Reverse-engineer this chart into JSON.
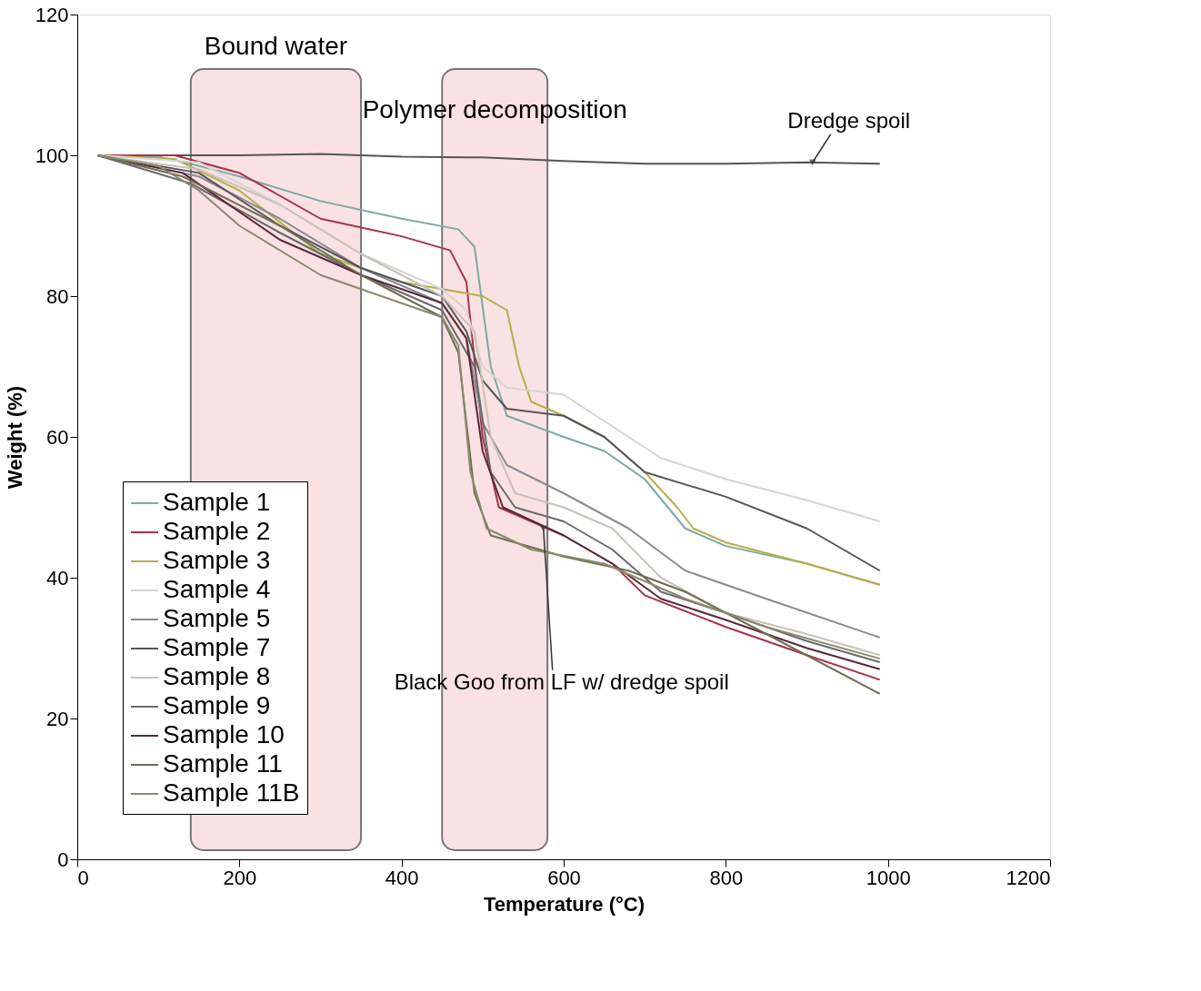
{
  "chart_data": {
    "type": "line",
    "xlabel": "Temperature (°C)",
    "ylabel": "Weight (%)",
    "xlim": [
      0,
      1200
    ],
    "xticks": [
      0,
      200,
      400,
      600,
      800,
      1000,
      1200
    ],
    "ylim": [
      0,
      120
    ],
    "yticks": [
      0,
      20,
      40,
      60,
      80,
      100,
      120
    ],
    "grid": false,
    "legend": "bottom left",
    "line_style": "solid",
    "marker": "none",
    "series": [
      {
        "name": "Sample 1",
        "color": "#7fa8a6",
        "x": [
          25,
          100,
          150,
          200,
          300,
          400,
          470,
          490,
          510,
          530,
          600,
          650,
          700,
          750,
          800,
          900,
          990
        ],
        "values": [
          100,
          99.8,
          98.5,
          97,
          93.5,
          91,
          89.5,
          87,
          70,
          63,
          60,
          58,
          54,
          47,
          44.5,
          42,
          39
        ]
      },
      {
        "name": "Sample 2",
        "color": "#a8324a",
        "x": [
          25,
          120,
          200,
          300,
          400,
          460,
          480,
          500,
          520,
          560,
          600,
          660,
          700,
          800,
          900,
          990
        ],
        "values": [
          100,
          100,
          97.5,
          91,
          88.5,
          86.5,
          82,
          60,
          50,
          48,
          46,
          42,
          37.5,
          33,
          29,
          25.5
        ]
      },
      {
        "name": "Sample 3",
        "color": "#b5b04a",
        "x": [
          25,
          120,
          200,
          300,
          400,
          500,
          530,
          545,
          560,
          600,
          650,
          700,
          740,
          760,
          800,
          900,
          990
        ],
        "values": [
          100,
          99.5,
          95,
          86,
          82,
          80,
          78,
          70,
          65,
          63,
          60,
          55,
          50,
          47,
          45,
          42,
          39
        ]
      },
      {
        "name": "Sample 4",
        "color": "#d8d4d4",
        "x": [
          25,
          150,
          250,
          350,
          450,
          480,
          500,
          530,
          600,
          680,
          720,
          800,
          900,
          990
        ],
        "values": [
          100,
          99,
          93,
          86,
          81,
          78,
          70,
          67,
          66,
          60,
          57,
          54,
          51,
          48
        ]
      },
      {
        "name": "Sample 5",
        "color": "#8a8a95",
        "x": [
          25,
          150,
          250,
          350,
          450,
          480,
          500,
          530,
          600,
          680,
          750,
          850,
          990
        ],
        "values": [
          100,
          97,
          91,
          84,
          79,
          74,
          62,
          56,
          52,
          47,
          41,
          37,
          31.5
        ]
      },
      {
        "name": "Sample 7",
        "color": "#55555c",
        "x": [
          25,
          150,
          250,
          350,
          450,
          480,
          500,
          530,
          600,
          650,
          700,
          800,
          900,
          990
        ],
        "values": [
          100,
          97.5,
          90,
          84,
          80,
          75,
          68,
          64,
          63,
          60,
          55,
          51.5,
          47,
          41
        ]
      },
      {
        "name": "Sample 8",
        "color": "#c9c2b8",
        "x": [
          25,
          150,
          250,
          350,
          450,
          490,
          510,
          540,
          600,
          660,
          720,
          800,
          900,
          990
        ],
        "values": [
          100,
          98,
          93,
          86,
          80,
          75,
          60,
          52,
          50,
          47,
          40,
          35,
          32,
          29
        ]
      },
      {
        "name": "Sample 9",
        "color": "#6a6a70",
        "x": [
          25,
          140,
          250,
          350,
          450,
          490,
          510,
          540,
          600,
          660,
          720,
          800,
          900,
          990
        ],
        "values": [
          100,
          96,
          89,
          83,
          78,
          70,
          55,
          50,
          48,
          44,
          38,
          35,
          31,
          28
        ]
      },
      {
        "name": "Sample 10",
        "color": "#5a2838",
        "x": [
          25,
          130,
          250,
          350,
          450,
          480,
          500,
          525,
          600,
          660,
          720,
          800,
          900,
          990
        ],
        "values": [
          100,
          97.5,
          88,
          83,
          79,
          74,
          58,
          50,
          46,
          42,
          37,
          34,
          30,
          27
        ]
      },
      {
        "name": "Sample 11",
        "color": "#6e6e50",
        "x": [
          25,
          130,
          250,
          350,
          450,
          470,
          490,
          510,
          600,
          680,
          750,
          850,
          990
        ],
        "values": [
          100,
          97,
          90,
          83,
          77,
          72,
          52,
          46,
          43,
          41,
          38,
          32,
          23.5
        ]
      },
      {
        "name": "Sample 11B",
        "color": "#8a8a70",
        "x": [
          25,
          100,
          150,
          200,
          300,
          400,
          450,
          470,
          485,
          505,
          560,
          650,
          750,
          850,
          990
        ],
        "values": [
          100,
          98.5,
          95,
          90,
          83,
          79,
          77,
          73,
          55,
          47,
          44,
          42,
          37,
          33,
          28.5
        ]
      },
      {
        "color": "#555555",
        "x": [
          25,
          100,
          200,
          300,
          400,
          500,
          600,
          700,
          800,
          900,
          990
        ],
        "values": [
          100,
          100,
          100,
          100.2,
          99.8,
          99.7,
          99.2,
          98.8,
          98.8,
          99,
          98.8
        ]
      }
    ],
    "bands": [
      {
        "axis": "x",
        "from": 140,
        "to": 350,
        "label": "Bound water",
        "color": "#fadadd"
      },
      {
        "axis": "x",
        "from": 450,
        "to": 580,
        "label": "Polymer decomposition",
        "color": "#fadadd"
      }
    ],
    "annotations": [
      {
        "text": "Dredge spoil",
        "x": 907,
        "y": 99
      },
      {
        "text": "Black Goo from LF w/ dredge spoil",
        "x": 575,
        "y": 47
      }
    ]
  }
}
